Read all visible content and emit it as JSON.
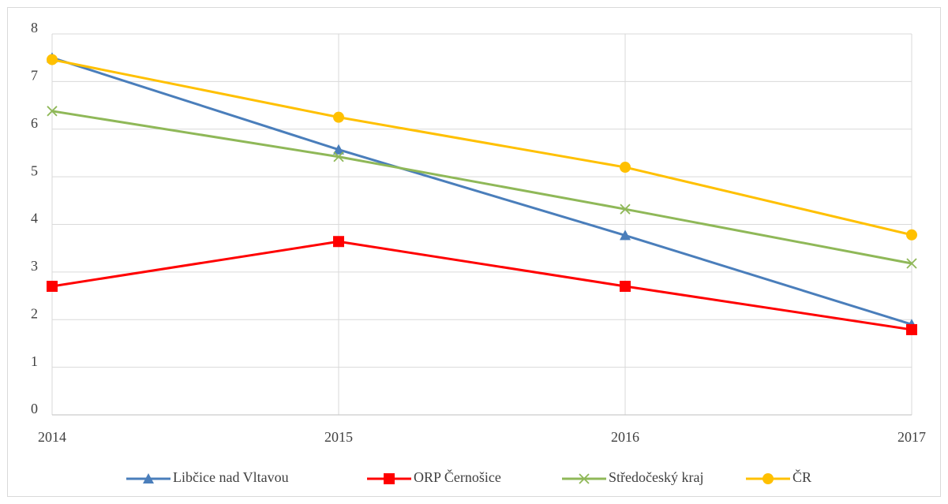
{
  "chart_data": {
    "type": "line",
    "x": [
      2014,
      2015,
      2016,
      2017
    ],
    "xlim": [
      2014,
      2017
    ],
    "xticks": [
      2014,
      2015,
      2016,
      2017
    ],
    "ylim": [
      0,
      8
    ],
    "yticks": [
      0,
      1,
      2,
      3,
      4,
      5,
      6,
      7,
      8
    ],
    "grid": true,
    "legend": "bottom",
    "series": [
      {
        "name": "Libčice nad Vltavou",
        "color": "#4a7ebb",
        "marker": "triangle",
        "values": [
          7.5,
          5.57,
          3.77,
          1.9
        ]
      },
      {
        "name": "ORP Černošice",
        "color": "#ff0000",
        "marker": "square",
        "values": [
          2.7,
          3.64,
          2.7,
          1.79
        ]
      },
      {
        "name": "Středočeský kraj",
        "color": "#8fb858",
        "marker": "x",
        "values": [
          6.38,
          5.42,
          4.32,
          3.18
        ]
      },
      {
        "name": "ČR",
        "color": "#ffc000",
        "marker": "circle",
        "values": [
          7.46,
          6.25,
          5.2,
          3.78
        ]
      }
    ]
  }
}
